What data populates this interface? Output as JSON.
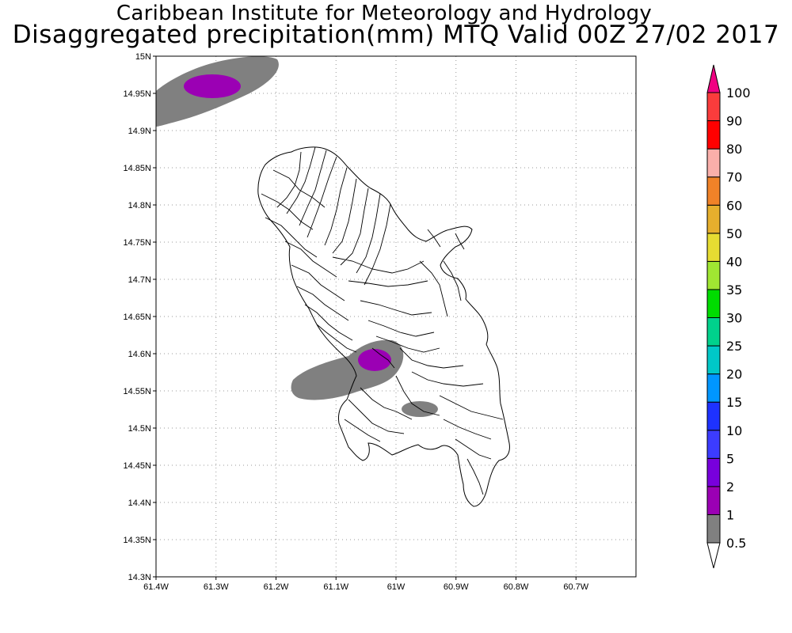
{
  "title_line1": "Caribbean Institute for Meteorology and Hydrology",
  "title_line2": "Disaggregated precipitation(mm) MTQ Valid 00Z 27/02 2017",
  "map": {
    "lon_range": [
      -61.4,
      -60.6
    ],
    "lat_range": [
      14.3,
      15.0
    ],
    "x_ticks": [
      {
        "lon": -61.4,
        "label": "61.4W"
      },
      {
        "lon": -61.3,
        "label": "61.3W"
      },
      {
        "lon": -61.2,
        "label": "61.2W"
      },
      {
        "lon": -61.1,
        "label": "61.1W"
      },
      {
        "lon": -61.0,
        "label": "61W"
      },
      {
        "lon": -60.9,
        "label": "60.9W"
      },
      {
        "lon": -60.8,
        "label": "60.8W"
      },
      {
        "lon": -60.7,
        "label": "60.7W"
      }
    ],
    "y_ticks": [
      {
        "lat": 15.0,
        "label": "15N"
      },
      {
        "lat": 14.95,
        "label": "14.95N"
      },
      {
        "lat": 14.9,
        "label": "14.9N"
      },
      {
        "lat": 14.85,
        "label": "14.85N"
      },
      {
        "lat": 14.8,
        "label": "14.8N"
      },
      {
        "lat": 14.75,
        "label": "14.75N"
      },
      {
        "lat": 14.7,
        "label": "14.7N"
      },
      {
        "lat": 14.65,
        "label": "14.65N"
      },
      {
        "lat": 14.6,
        "label": "14.6N"
      },
      {
        "lat": 14.55,
        "label": "14.55N"
      },
      {
        "lat": 14.5,
        "label": "14.5N"
      },
      {
        "lat": 14.45,
        "label": "14.45N"
      },
      {
        "lat": 14.4,
        "label": "14.4N"
      },
      {
        "lat": 14.35,
        "label": "14.35N"
      },
      {
        "lat": 14.3,
        "label": "14.3N"
      }
    ],
    "grid": "dotted",
    "island": "Martinique"
  },
  "colorbar": {
    "levels": [
      "0.5",
      "1",
      "2",
      "5",
      "10",
      "15",
      "20",
      "25",
      "30",
      "35",
      "40",
      "50",
      "60",
      "70",
      "80",
      "90",
      "100"
    ],
    "colors": [
      "#808080",
      "#9b00b4",
      "#7800dc",
      "#3c3cff",
      "#1e32ff",
      "#0096ff",
      "#00c8c8",
      "#00d28c",
      "#00dc00",
      "#a0e632",
      "#e6dc32",
      "#e6af2d",
      "#f08228",
      "#faafaa",
      "#ff0000",
      "#fa3c3c",
      "#f00082"
    ],
    "below_color": "#ffffff"
  },
  "precip_areas": [
    {
      "name": "northwest-offshore",
      "level_mm": "0.5-1",
      "color": "#808080"
    },
    {
      "name": "northwest-offshore-core",
      "level_mm": "1-2",
      "color": "#9b00b4"
    },
    {
      "name": "west-central",
      "level_mm": "0.5-1",
      "color": "#808080"
    },
    {
      "name": "west-central-core",
      "level_mm": "1-2",
      "color": "#9b00b4"
    },
    {
      "name": "south-central",
      "level_mm": "0.5-1",
      "color": "#808080"
    }
  ]
}
